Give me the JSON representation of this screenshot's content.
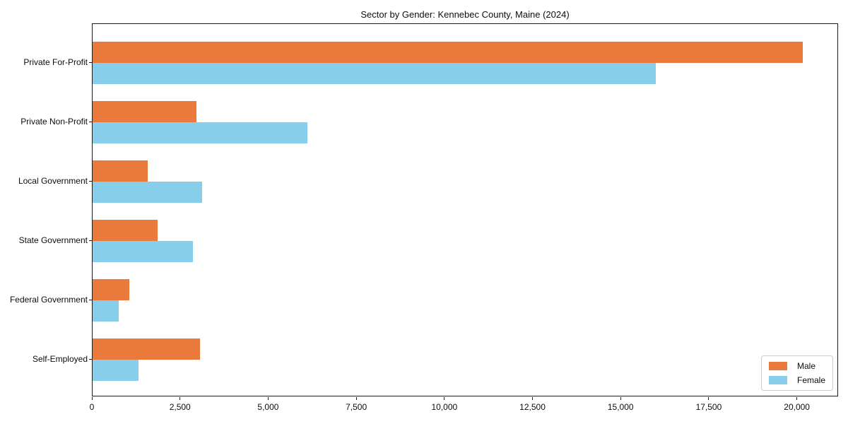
{
  "title": "Sector by Gender: Kennebec County, Maine (2024)",
  "chart_data": {
    "type": "bar",
    "orientation": "horizontal",
    "title": "Sector by Gender: Kennebec County, Maine (2024)",
    "categories": [
      "Private For-Profit",
      "Private Non-Profit",
      "Local Government",
      "State Government",
      "Federal Government",
      "Self-Employed"
    ],
    "series": [
      {
        "name": "Male",
        "color": "#ea7a3c",
        "values": [
          20150,
          2940,
          1570,
          1850,
          1040,
          3040
        ]
      },
      {
        "name": "Female",
        "color": "#87ceeb",
        "values": [
          15970,
          6100,
          3110,
          2840,
          740,
          1300
        ]
      }
    ],
    "xlabel": "",
    "ylabel": "",
    "xlim": [
      0,
      21170
    ],
    "xticks": [
      0,
      2500,
      5000,
      7500,
      10000,
      12500,
      15000,
      17500,
      20000
    ],
    "xtick_labels": [
      "0",
      "2,500",
      "5,000",
      "7,500",
      "10,000",
      "12,500",
      "15,000",
      "17,500",
      "20,000"
    ],
    "grid": false,
    "legend": {
      "position": "lower right",
      "entries": [
        "Male",
        "Female"
      ]
    },
    "colors": {
      "axis": "#1a1a1a",
      "text": "#0d0d0d",
      "background": "#ffffff"
    }
  }
}
